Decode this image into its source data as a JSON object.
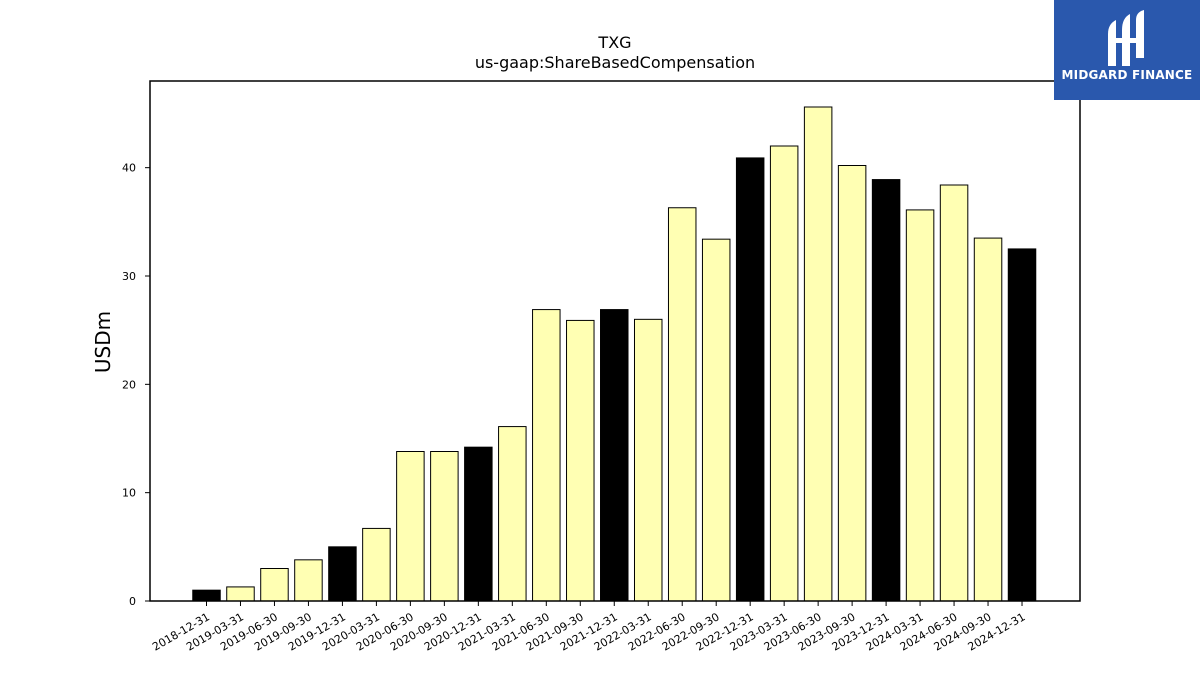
{
  "chart_data": {
    "type": "bar",
    "title": "TXG",
    "subtitle": "us-gaap:ShareBasedCompensation",
    "xlabel": "",
    "ylabel": "USDm",
    "ylim": [
      0,
      48
    ],
    "yticks": [
      0,
      10,
      20,
      30,
      40
    ],
    "grid": false,
    "categories": [
      "2018-12-31",
      "2019-03-31",
      "2019-06-30",
      "2019-09-30",
      "2019-12-31",
      "2020-03-31",
      "2020-06-30",
      "2020-09-30",
      "2020-12-31",
      "2021-03-31",
      "2021-06-30",
      "2021-09-30",
      "2021-12-31",
      "2022-03-31",
      "2022-06-30",
      "2022-09-30",
      "2022-12-31",
      "2023-03-31",
      "2023-06-30",
      "2023-09-30",
      "2023-12-31",
      "2024-03-31",
      "2024-06-30",
      "2024-09-30",
      "2024-12-31"
    ],
    "values": [
      1.0,
      1.3,
      3.0,
      3.8,
      5.0,
      6.7,
      13.8,
      13.8,
      14.2,
      16.1,
      26.9,
      25.9,
      26.9,
      26.0,
      36.3,
      33.4,
      40.9,
      42.0,
      45.6,
      40.2,
      38.9,
      36.1,
      38.4,
      33.5,
      32.5
    ],
    "colors": {
      "quarter_bar": "#ffffb3",
      "year_end_bar": "#000000",
      "bar_edge": "#000000"
    }
  },
  "logo": {
    "text": "MIDGARD FINANCE",
    "background": "#2a58ad",
    "icon": "midgard-logo-icon"
  }
}
